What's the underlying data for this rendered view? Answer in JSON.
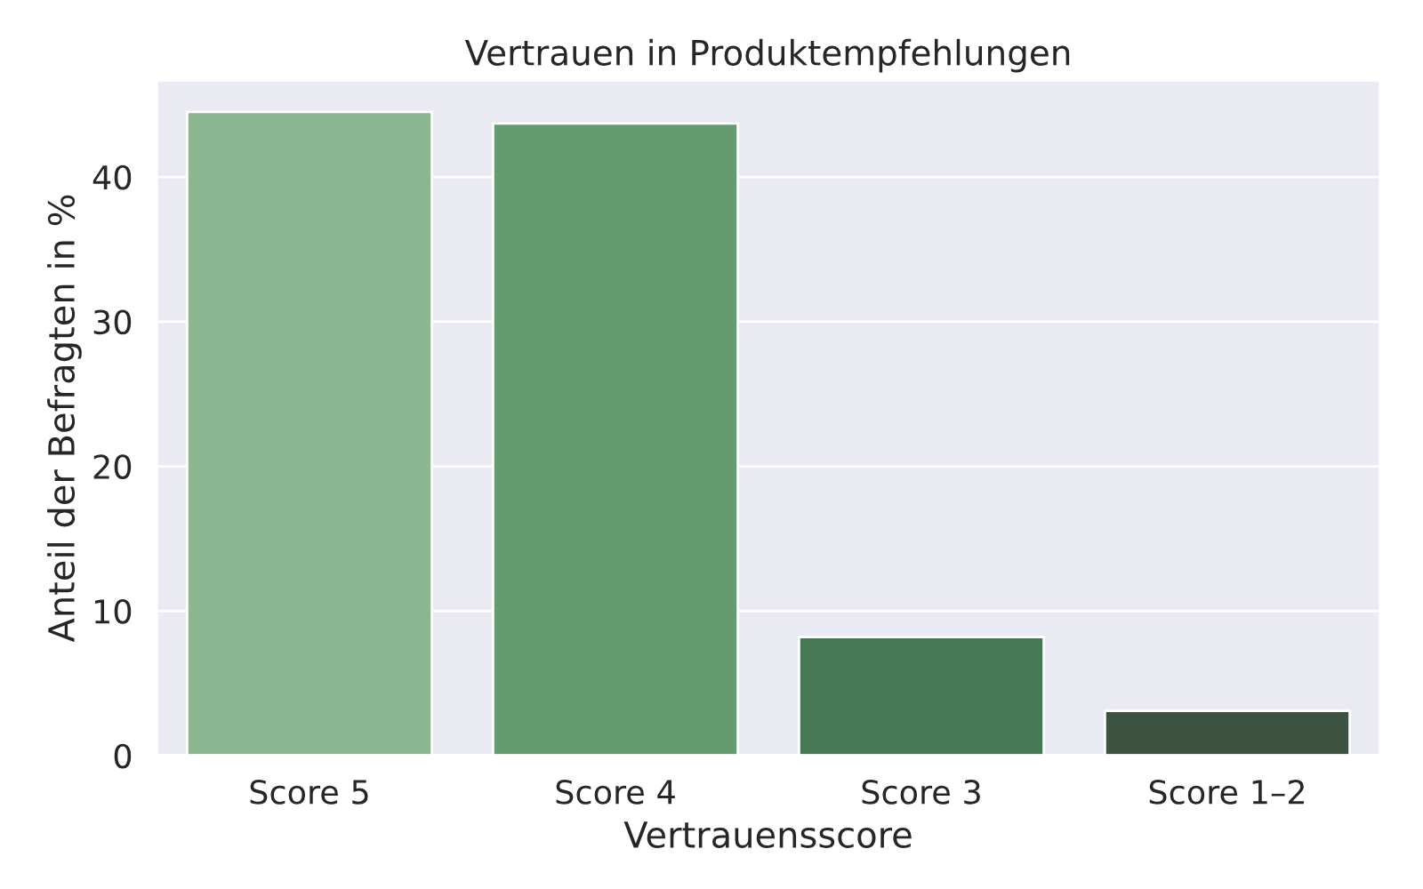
{
  "chart_data": {
    "type": "bar",
    "title": "Vertrauen in Produktempfehlungen",
    "xlabel": "Vertrauensscore",
    "ylabel": "Anteil der Befragten in %",
    "categories": [
      "Score 5",
      "Score 4",
      "Score 3",
      "Score 1–2"
    ],
    "values": [
      44.5,
      43.7,
      8.2,
      3.1
    ],
    "colors": [
      "#84bd8a",
      "#5ba56a",
      "#3d8150",
      "#38573f"
    ],
    "ylim": [
      0,
      46.7
    ],
    "yticks": [
      0,
      10,
      20,
      30,
      40
    ],
    "grid": "y"
  }
}
